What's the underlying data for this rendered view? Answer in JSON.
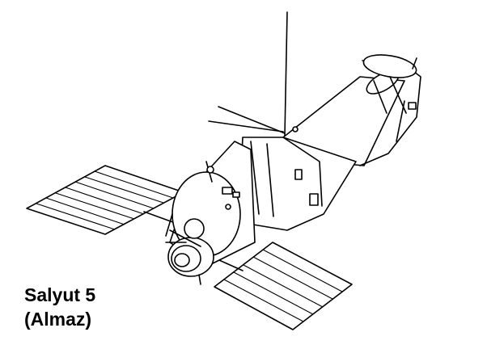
{
  "caption": {
    "line1": "Salyut 5",
    "line2": "(Almaz)"
  },
  "colors": {
    "line": "#000000",
    "background": "#ffffff"
  }
}
